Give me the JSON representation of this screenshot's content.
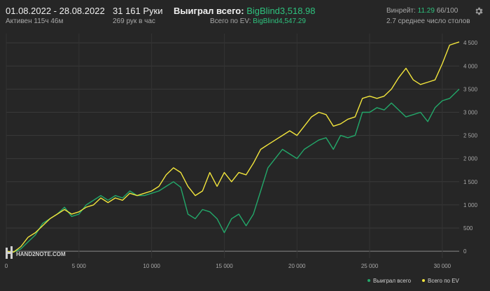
{
  "header": {
    "date_range": "01.08.2022 - 28.08.2022",
    "active_time": "Активен 115ч 46м",
    "hands": "31 161 Руки",
    "hands_per_hour": "269 рук в час",
    "won_total_label": "Выиграл всего:",
    "won_total_value": "BigBlind3,518.98",
    "ev_total_label": "Всего по EV:",
    "ev_total_value": "BigBlind4,547.29",
    "winrate_label": "Винрейт:",
    "winrate_value": "11.29",
    "winrate_suffix": "66/100",
    "avg_tables": "2.7 среднее число столов"
  },
  "watermark": "HAND2NOTE.COM",
  "colors": {
    "background": "#262626",
    "won_series": "#23a86a",
    "ev_series": "#f2e53c",
    "accent_green": "#2ec27e"
  },
  "icons": {
    "settings": "gear-icon"
  },
  "chart_data": {
    "type": "line",
    "xlim": [
      0,
      31161
    ],
    "ylim": [
      -150,
      4700
    ],
    "x_ticks": [
      0,
      5000,
      10000,
      15000,
      20000,
      25000,
      30000
    ],
    "x_tick_labels": [
      "0",
      "5 000",
      "10 000",
      "15 000",
      "20 000",
      "25 000",
      "30 000"
    ],
    "y_ticks": [
      0,
      500,
      1000,
      1500,
      2000,
      2500,
      3000,
      3500,
      4000,
      4500
    ],
    "y_tick_labels": [
      "0",
      "500",
      "1 000",
      "1 500",
      "2 000",
      "2 500",
      "3 000",
      "3 500",
      "4 000",
      "4 500"
    ],
    "grid": true,
    "legend_position": "bottom-right",
    "series": [
      {
        "name": "Выиграл всего",
        "color": "#23a86a",
        "x": [
          0,
          500,
          1000,
          1500,
          2000,
          2500,
          3000,
          3500,
          4000,
          4500,
          5000,
          5500,
          6000,
          6500,
          7000,
          7500,
          8000,
          8500,
          9000,
          9500,
          10000,
          10500,
          11000,
          11500,
          12000,
          12500,
          13000,
          13500,
          14000,
          14500,
          15000,
          15500,
          16000,
          16500,
          17000,
          17500,
          18000,
          18500,
          19000,
          19500,
          20000,
          20500,
          21000,
          21500,
          22000,
          22500,
          23000,
          23500,
          24000,
          24500,
          25000,
          25500,
          26000,
          26500,
          27000,
          27500,
          28000,
          28500,
          29000,
          29500,
          30000,
          30500,
          31161
        ],
        "values": [
          0,
          -20,
          50,
          200,
          350,
          600,
          700,
          800,
          950,
          750,
          800,
          1000,
          1100,
          1200,
          1100,
          1200,
          1150,
          1300,
          1200,
          1200,
          1250,
          1300,
          1400,
          1500,
          1380,
          800,
          700,
          900,
          850,
          700,
          400,
          700,
          800,
          550,
          800,
          1300,
          1800,
          2000,
          2200,
          2100,
          2000,
          2200,
          2300,
          2400,
          2450,
          2200,
          2500,
          2450,
          2500,
          3000,
          3000,
          3100,
          3050,
          3200,
          3050,
          2900,
          2950,
          3000,
          2800,
          3100,
          3250,
          3300,
          3500
        ]
      },
      {
        "name": "Всего по EV",
        "color": "#f2e53c",
        "x": [
          0,
          500,
          1000,
          1500,
          2000,
          2500,
          3000,
          3500,
          4000,
          4500,
          5000,
          5500,
          6000,
          6500,
          7000,
          7500,
          8000,
          8500,
          9000,
          9500,
          10000,
          10500,
          11000,
          11500,
          12000,
          12500,
          13000,
          13500,
          14000,
          14500,
          15000,
          15500,
          16000,
          16500,
          17000,
          17500,
          18000,
          18500,
          19000,
          19500,
          20000,
          20500,
          21000,
          21500,
          22000,
          22500,
          23000,
          23500,
          24000,
          24500,
          25000,
          25500,
          26000,
          26500,
          27000,
          27500,
          28000,
          28500,
          29000,
          29500,
          30000,
          30500,
          31161
        ],
        "values": [
          0,
          -20,
          100,
          300,
          400,
          550,
          700,
          800,
          900,
          800,
          850,
          950,
          1000,
          1150,
          1050,
          1150,
          1100,
          1250,
          1200,
          1250,
          1300,
          1400,
          1650,
          1800,
          1700,
          1400,
          1200,
          1300,
          1700,
          1400,
          1700,
          1500,
          1700,
          1650,
          1900,
          2200,
          2300,
          2400,
          2500,
          2600,
          2500,
          2700,
          2900,
          3000,
          2950,
          2700,
          2750,
          2850,
          2900,
          3300,
          3350,
          3300,
          3350,
          3500,
          3750,
          3950,
          3700,
          3600,
          3650,
          3700,
          4050,
          4450,
          4520
        ]
      }
    ]
  }
}
